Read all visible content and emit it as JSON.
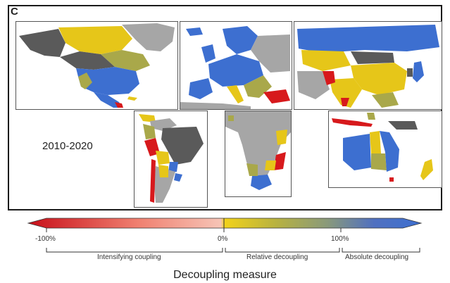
{
  "figure": {
    "panel_letter": "C",
    "period": "2010-2020"
  },
  "map": {
    "panels": [
      "north-america",
      "europe",
      "asia",
      "south-america",
      "africa",
      "oceania"
    ],
    "colors": {
      "intensifying": "#d7191c",
      "weak": "#f4a3a0",
      "relative": "#e6c619",
      "olive": "#a9a84a",
      "absolute": "#3d6fd0",
      "dark_grey": "#5a5a5a",
      "light_grey": "#a6a6a6",
      "ocean": "#ffffff"
    }
  },
  "legend": {
    "title": "Decoupling measure",
    "ticks": [
      "-100%",
      "0%",
      "100%"
    ],
    "ranges": [
      "Intensifying coupling",
      "Relative decoupling",
      "Absolute decoupling"
    ],
    "gradient_stops": [
      "#c8101a",
      "#f08070",
      "#f6c4b6",
      "#f2d21a",
      "#b8b240",
      "#8a9a7a",
      "#5070c0",
      "#3d6fd0"
    ]
  }
}
